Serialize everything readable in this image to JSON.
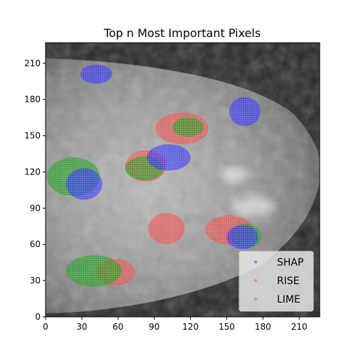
{
  "chart_data": {
    "type": "scatter",
    "title": "Top n Most Important Pixels",
    "xlabel": "",
    "ylabel": "",
    "xlim": [
      0,
      227
    ],
    "ylim": [
      0,
      227
    ],
    "x_ticks": [
      0,
      30,
      60,
      90,
      120,
      150,
      180,
      210
    ],
    "y_ticks": [
      0,
      30,
      60,
      90,
      120,
      150,
      180,
      210
    ],
    "background": "grayscale mammogram image",
    "grid": false,
    "legend": {
      "placement": "lower-right"
    },
    "series": [
      {
        "name": "SHAP",
        "color": "#0000ff",
        "regions": [
          {
            "cx": 42,
            "cy": 201,
            "rx": 13,
            "ry": 8
          },
          {
            "cx": 165,
            "cy": 170,
            "rx": 13,
            "ry": 12
          },
          {
            "cx": 102,
            "cy": 132,
            "rx": 18,
            "ry": 11
          },
          {
            "cx": 32,
            "cy": 110,
            "rx": 15,
            "ry": 13
          },
          {
            "cx": 163,
            "cy": 66,
            "rx": 13,
            "ry": 10
          }
        ]
      },
      {
        "name": "RISE",
        "color": "#ff0000",
        "regions": [
          {
            "cx": 113,
            "cy": 156,
            "rx": 22,
            "ry": 13
          },
          {
            "cx": 83,
            "cy": 125,
            "rx": 17,
            "ry": 13
          },
          {
            "cx": 100,
            "cy": 73,
            "rx": 15,
            "ry": 13
          },
          {
            "cx": 152,
            "cy": 72,
            "rx": 20,
            "ry": 12
          },
          {
            "cx": 58,
            "cy": 37,
            "rx": 16,
            "ry": 11
          }
        ]
      },
      {
        "name": "LIME",
        "color": "#008000",
        "regions": [
          {
            "cx": 118,
            "cy": 157,
            "rx": 13,
            "ry": 8
          },
          {
            "cx": 82,
            "cy": 123,
            "rx": 16,
            "ry": 10
          },
          {
            "cx": 23,
            "cy": 116,
            "rx": 22,
            "ry": 16
          },
          {
            "cx": 166,
            "cy": 67,
            "rx": 13,
            "ry": 10
          },
          {
            "cx": 40,
            "cy": 38,
            "rx": 23,
            "ry": 13
          }
        ]
      }
    ]
  }
}
